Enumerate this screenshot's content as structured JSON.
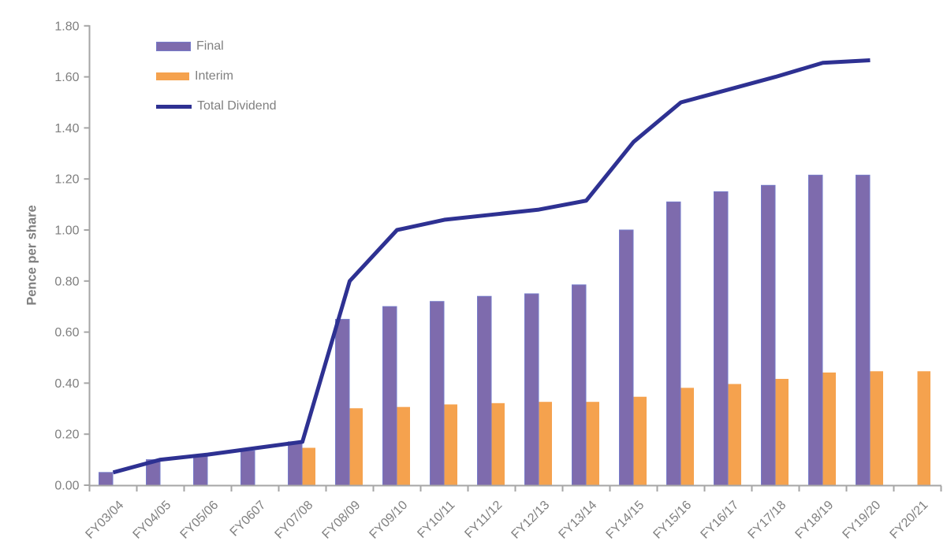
{
  "chart_data": {
    "type": "bar+line-combo",
    "title": "",
    "xlabel": "",
    "ylabel": "Pence per share",
    "ylim": [
      0,
      1.8
    ],
    "ytick_step": 0.2,
    "ytick_decimals": 2,
    "grid": false,
    "legend_position": "top-left-inside",
    "axis_color": "#A6A6A6",
    "tick_label_color": "#7F7F7F",
    "categories": [
      "FY03/04",
      "FY04/05",
      "FY05/06",
      "FY0607",
      "FY07/08",
      "FY08/09",
      "FY09/10",
      "FY10/11",
      "FY11/12",
      "FY12/13",
      "FY13/14",
      "FY14/15",
      "FY15/16",
      "FY16/17",
      "FY17/18",
      "FY18/19",
      "FY19/20",
      "FY20/21"
    ],
    "series": [
      {
        "name": "Final",
        "type": "bar",
        "color": "#7E6BAD",
        "border_color": "#767BC9",
        "values": [
          0.05,
          0.1,
          0.115,
          0.135,
          0.17,
          0.65,
          0.7,
          0.72,
          0.74,
          0.75,
          0.785,
          1.0,
          1.11,
          1.15,
          1.175,
          1.215,
          1.215,
          null
        ]
      },
      {
        "name": "Interim",
        "type": "bar",
        "color": "#F5A24E",
        "border_color": "#F5A24E",
        "values": [
          null,
          null,
          null,
          null,
          0.145,
          0.3,
          0.305,
          0.315,
          0.32,
          0.325,
          0.325,
          0.345,
          0.38,
          0.395,
          0.415,
          0.44,
          0.445,
          0.445
        ]
      },
      {
        "name": "Total Dividend",
        "type": "line",
        "color": "#2E3192",
        "values": [
          0.05,
          0.1,
          0.12,
          0.145,
          0.17,
          0.8,
          1.0,
          1.04,
          1.06,
          1.08,
          1.115,
          1.345,
          1.5,
          1.55,
          1.6,
          1.655,
          1.665,
          null
        ]
      }
    ]
  }
}
